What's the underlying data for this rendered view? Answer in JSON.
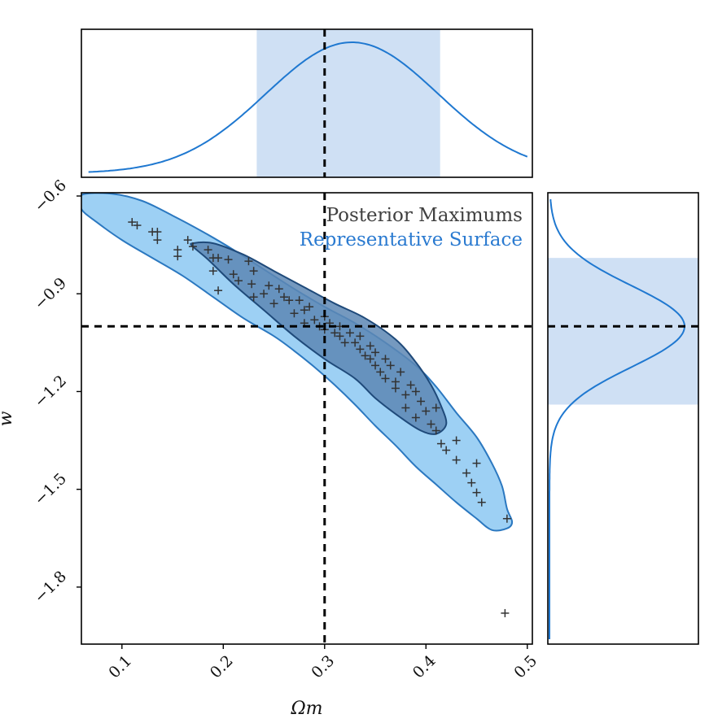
{
  "chart_data": {
    "type": "scatter",
    "xlabel": "Ωm",
    "ylabel": "w",
    "xlim": [
      0.06,
      0.505
    ],
    "ylim": [
      -1.975,
      -0.59
    ],
    "x_ticks": [
      0.1,
      0.2,
      0.3,
      0.4,
      0.5
    ],
    "x_tick_labels": [
      "0.1",
      "0.2",
      "0.3",
      "0.4",
      "0.5"
    ],
    "y_ticks": [
      -0.6,
      -0.9,
      -1.2,
      -1.5,
      -1.8
    ],
    "y_tick_labels": [
      "−0.6",
      "−0.9",
      "−1.2",
      "−1.5",
      "−1.8"
    ],
    "true_value": {
      "x": 0.3,
      "y": -1.0
    },
    "legend": {
      "placement": "top-right",
      "entries": [
        {
          "label": "Posterior Maximums",
          "color": "#404040"
        },
        {
          "label": "Representative Surface",
          "color": "#2a7ad0"
        }
      ]
    },
    "colors": {
      "outer_contour_fill": "#9dd0f4",
      "outer_contour_edge": "#2b78c0",
      "inner_contour_fill": "#5d87b4",
      "inner_contour_edge": "#1f4a7a",
      "marginal_line": "#1f78d0",
      "marginal_band": "#cfe0f4",
      "marker": "#333333"
    },
    "outer_contour": [
      [
        0.06,
        -0.597
      ],
      [
        0.09,
        -0.593
      ],
      [
        0.12,
        -0.615
      ],
      [
        0.15,
        -0.66
      ],
      [
        0.18,
        -0.71
      ],
      [
        0.21,
        -0.765
      ],
      [
        0.24,
        -0.825
      ],
      [
        0.27,
        -0.885
      ],
      [
        0.3,
        -0.94
      ],
      [
        0.33,
        -0.99
      ],
      [
        0.36,
        -1.05
      ],
      [
        0.39,
        -1.12
      ],
      [
        0.41,
        -1.185
      ],
      [
        0.43,
        -1.265
      ],
      [
        0.45,
        -1.34
      ],
      [
        0.465,
        -1.42
      ],
      [
        0.475,
        -1.49
      ],
      [
        0.48,
        -1.56
      ],
      [
        0.485,
        -1.6
      ],
      [
        0.48,
        -1.62
      ],
      [
        0.465,
        -1.625
      ],
      [
        0.45,
        -1.59
      ],
      [
        0.43,
        -1.54
      ],
      [
        0.41,
        -1.485
      ],
      [
        0.39,
        -1.43
      ],
      [
        0.37,
        -1.365
      ],
      [
        0.35,
        -1.305
      ],
      [
        0.33,
        -1.24
      ],
      [
        0.31,
        -1.18
      ],
      [
        0.29,
        -1.125
      ],
      [
        0.27,
        -1.075
      ],
      [
        0.25,
        -1.03
      ],
      [
        0.22,
        -0.975
      ],
      [
        0.19,
        -0.91
      ],
      [
        0.16,
        -0.845
      ],
      [
        0.13,
        -0.79
      ],
      [
        0.1,
        -0.735
      ],
      [
        0.075,
        -0.68
      ],
      [
        0.06,
        -0.64
      ]
    ],
    "inner_contour": [
      [
        0.17,
        -0.745
      ],
      [
        0.19,
        -0.745
      ],
      [
        0.22,
        -0.78
      ],
      [
        0.25,
        -0.83
      ],
      [
        0.28,
        -0.88
      ],
      [
        0.31,
        -0.93
      ],
      [
        0.34,
        -0.975
      ],
      [
        0.37,
        -1.04
      ],
      [
        0.39,
        -1.11
      ],
      [
        0.405,
        -1.18
      ],
      [
        0.415,
        -1.245
      ],
      [
        0.42,
        -1.3
      ],
      [
        0.41,
        -1.33
      ],
      [
        0.395,
        -1.32
      ],
      [
        0.375,
        -1.28
      ],
      [
        0.35,
        -1.22
      ],
      [
        0.33,
        -1.16
      ],
      [
        0.3,
        -1.1
      ],
      [
        0.27,
        -1.03
      ],
      [
        0.24,
        -0.95
      ],
      [
        0.21,
        -0.87
      ],
      [
        0.185,
        -0.795
      ],
      [
        0.17,
        -0.755
      ]
    ],
    "points": [
      [
        0.11,
        -0.68
      ],
      [
        0.115,
        -0.69
      ],
      [
        0.13,
        -0.71
      ],
      [
        0.135,
        -0.71
      ],
      [
        0.135,
        -0.735
      ],
      [
        0.155,
        -0.765
      ],
      [
        0.155,
        -0.785
      ],
      [
        0.165,
        -0.735
      ],
      [
        0.17,
        -0.755
      ],
      [
        0.185,
        -0.765
      ],
      [
        0.19,
        -0.79
      ],
      [
        0.19,
        -0.83
      ],
      [
        0.195,
        -0.79
      ],
      [
        0.195,
        -0.89
      ],
      [
        0.205,
        -0.795
      ],
      [
        0.21,
        -0.84
      ],
      [
        0.215,
        -0.86
      ],
      [
        0.225,
        -0.8
      ],
      [
        0.228,
        -0.87
      ],
      [
        0.23,
        -0.91
      ],
      [
        0.23,
        -0.83
      ],
      [
        0.24,
        -0.9
      ],
      [
        0.245,
        -0.875
      ],
      [
        0.25,
        -0.93
      ],
      [
        0.255,
        -0.885
      ],
      [
        0.26,
        -0.91
      ],
      [
        0.265,
        -0.92
      ],
      [
        0.27,
        -0.96
      ],
      [
        0.275,
        -0.92
      ],
      [
        0.28,
        -0.95
      ],
      [
        0.28,
        -0.99
      ],
      [
        0.285,
        -0.94
      ],
      [
        0.29,
        -0.98
      ],
      [
        0.295,
        -1.0
      ],
      [
        0.3,
        -1.01
      ],
      [
        0.3,
        -0.97
      ],
      [
        0.305,
        -0.99
      ],
      [
        0.31,
        -1.02
      ],
      [
        0.315,
        -1.03
      ],
      [
        0.315,
        -1.0
      ],
      [
        0.32,
        -1.05
      ],
      [
        0.325,
        -1.02
      ],
      [
        0.33,
        -1.05
      ],
      [
        0.335,
        -1.07
      ],
      [
        0.335,
        -1.03
      ],
      [
        0.34,
        -1.09
      ],
      [
        0.345,
        -1.1
      ],
      [
        0.345,
        -1.06
      ],
      [
        0.35,
        -1.12
      ],
      [
        0.35,
        -1.08
      ],
      [
        0.355,
        -1.14
      ],
      [
        0.36,
        -1.1
      ],
      [
        0.36,
        -1.16
      ],
      [
        0.365,
        -1.12
      ],
      [
        0.37,
        -1.17
      ],
      [
        0.37,
        -1.19
      ],
      [
        0.375,
        -1.14
      ],
      [
        0.38,
        -1.21
      ],
      [
        0.38,
        -1.25
      ],
      [
        0.385,
        -1.18
      ],
      [
        0.39,
        -1.2
      ],
      [
        0.39,
        -1.28
      ],
      [
        0.395,
        -1.23
      ],
      [
        0.4,
        -1.26
      ],
      [
        0.405,
        -1.3
      ],
      [
        0.41,
        -1.25
      ],
      [
        0.41,
        -1.32
      ],
      [
        0.415,
        -1.36
      ],
      [
        0.42,
        -1.38
      ],
      [
        0.43,
        -1.35
      ],
      [
        0.43,
        -1.41
      ],
      [
        0.44,
        -1.45
      ],
      [
        0.445,
        -1.48
      ],
      [
        0.45,
        -1.42
      ],
      [
        0.45,
        -1.51
      ],
      [
        0.455,
        -1.54
      ],
      [
        0.48,
        -1.59
      ],
      [
        0.478,
        -1.88
      ]
    ],
    "top_marginal": {
      "peak_x": 0.327,
      "sigma": 0.085,
      "band": [
        0.233,
        0.414
      ]
    },
    "right_marginal": {
      "peak_y": -1.0,
      "sigma": 0.125,
      "band": [
        -0.79,
        -1.24
      ]
    }
  }
}
